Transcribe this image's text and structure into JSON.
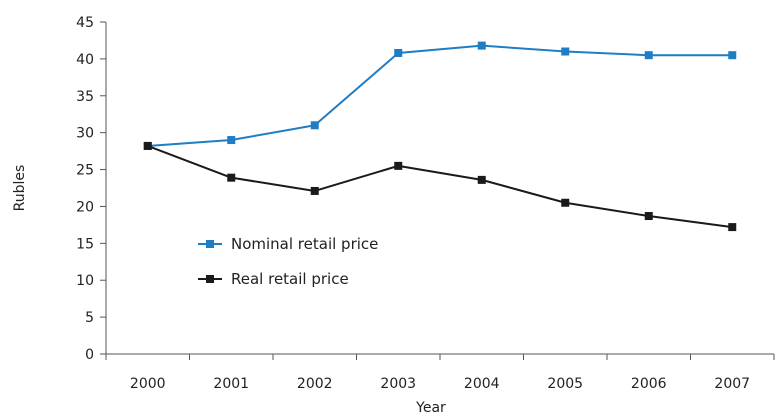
{
  "chart_data": {
    "type": "line",
    "title": "",
    "xlabel": "Year",
    "ylabel": "Rubles",
    "x": [
      "2000",
      "2001",
      "2002",
      "2003",
      "2004",
      "2005",
      "2006",
      "2007"
    ],
    "ylim": [
      0,
      45
    ],
    "yticks": [
      "0",
      "5",
      "10",
      "15",
      "20",
      "25",
      "30",
      "35",
      "40",
      "45"
    ],
    "grid": false,
    "legend_position": "center-left",
    "series": [
      {
        "name": "Nominal retail price",
        "color": "#1f7dc4",
        "marker": "square",
        "values": [
          28.2,
          29.0,
          31.0,
          40.8,
          41.8,
          41.0,
          40.5,
          40.5
        ]
      },
      {
        "name": "Real retail price",
        "color": "#1a1a1a",
        "marker": "square",
        "values": [
          28.2,
          23.9,
          22.1,
          25.5,
          23.6,
          20.5,
          18.7,
          17.2
        ]
      }
    ]
  }
}
